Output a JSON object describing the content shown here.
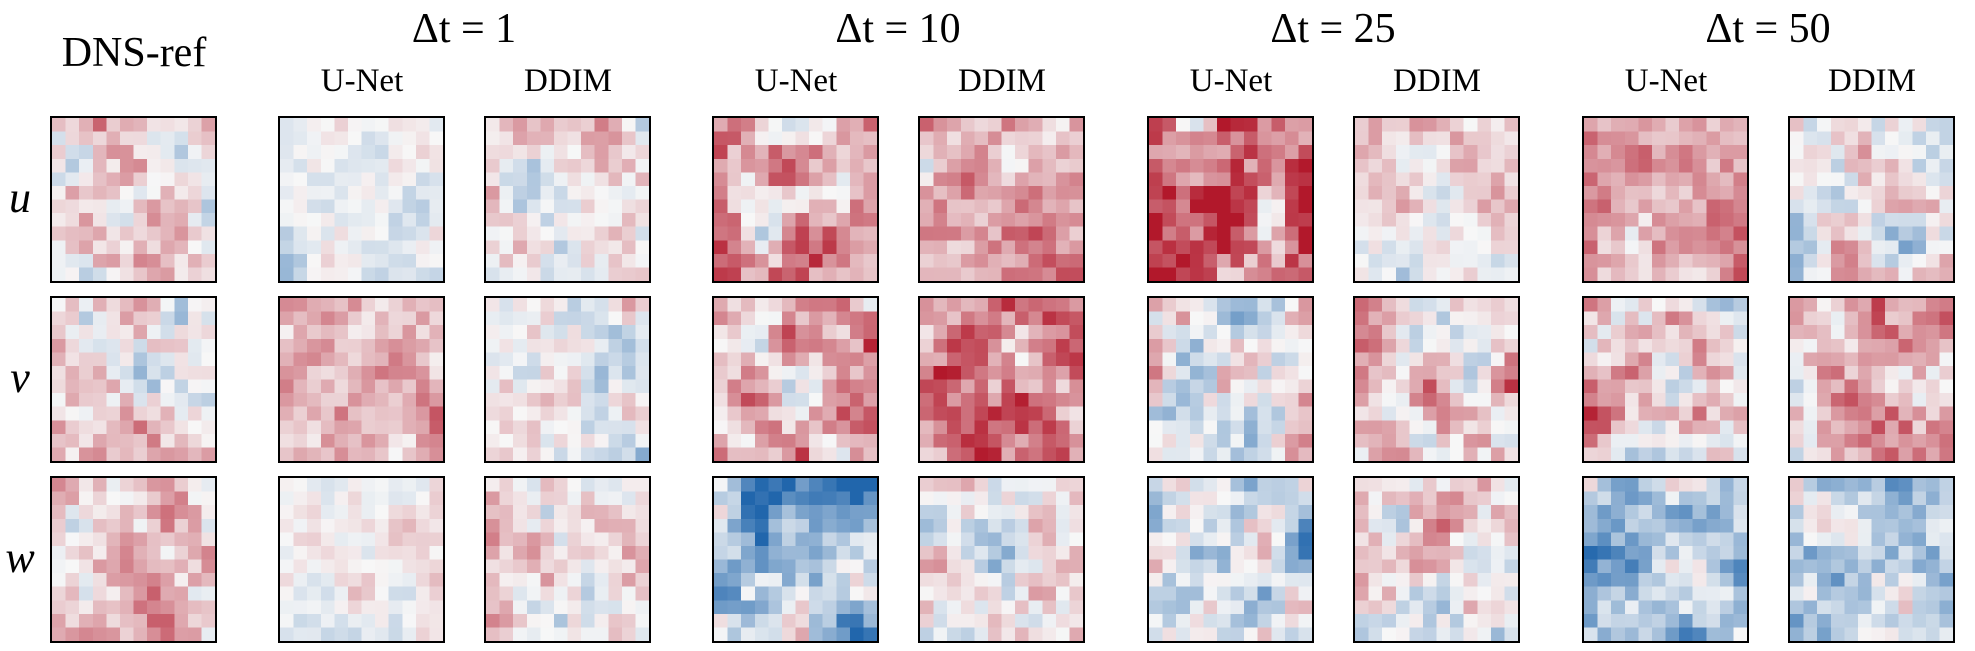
{
  "figure": {
    "reference_title": "DNS-ref",
    "row_labels": [
      "u",
      "v",
      "w"
    ],
    "groups": [
      {
        "title": "Δt = 1",
        "columns": [
          "U-Net",
          "DDIM"
        ]
      },
      {
        "title": "Δt = 10",
        "columns": [
          "U-Net",
          "DDIM"
        ]
      },
      {
        "title": "Δt = 25",
        "columns": [
          "U-Net",
          "DDIM"
        ]
      },
      {
        "title": "Δt = 50",
        "columns": [
          "U-Net",
          "DDIM"
        ]
      }
    ],
    "colormap": {
      "negative": "#2166ac",
      "neutral": "#f7f7f7",
      "positive": "#b2182b"
    }
  }
}
